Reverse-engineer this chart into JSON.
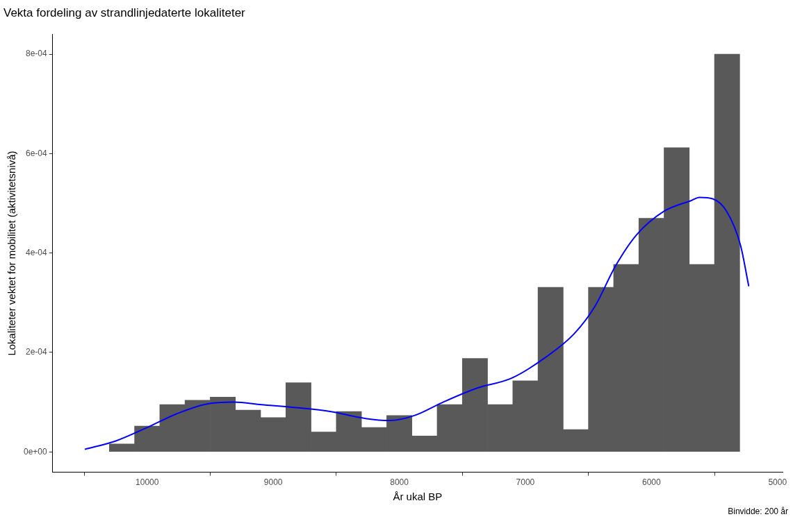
{
  "chart_data": {
    "type": "histogram",
    "title": "Vekta fordeling av strandlinjedaterte lokaliteter",
    "xlabel": "År ukal BP",
    "ylabel": "Lokaliteter vektet for mobilitet (aktivitetsnivå)",
    "xlim": [
      10750,
      4960
    ],
    "xticks": [
      10000,
      9000,
      8000,
      7000,
      6000,
      5000
    ],
    "ylim": [
      -4.1e-05,
      0.00084
    ],
    "yticks": [
      {
        "value": 0,
        "label": "0e+00"
      },
      {
        "value": 0.0002,
        "label": "2e-04"
      },
      {
        "value": 0.0004,
        "label": "4e-04"
      },
      {
        "value": 0.0006,
        "label": "6e-04"
      },
      {
        "value": 0.0008,
        "label": "8e-04"
      }
    ],
    "grid": false,
    "legend": false,
    "annotations": [
      "Binvidde: 200 år"
    ],
    "series": [
      {
        "color": "#595959",
        "bins": [
          5300,
          5500,
          5700,
          5900,
          6100,
          6300,
          6500,
          6700,
          6900,
          7100,
          7300,
          7500,
          7700,
          7900,
          8100,
          8300,
          8500,
          8700,
          8900,
          9100,
          9300,
          9500,
          9700,
          9900,
          10100,
          10300
        ],
        "values": [
          0.0008,
          0.000377,
          0.000612,
          0.00047,
          0.000377,
          0.000331,
          4.5e-05,
          0.000331,
          0.000143,
          9.5e-05,
          0.000188,
          9.5e-05,
          3.2e-05,
          7.3e-05,
          4.9e-05,
          8.1e-05,
          4e-05,
          0.000139,
          6.9e-05,
          8.4e-05,
          0.00011,
          0.000104,
          9.5e-05,
          5.2e-05,
          1.6e-05
        ]
      },
      {
        "type": "line",
        "color": "#0000ff",
        "x": [
          10495,
          10248,
          10000,
          9752,
          9532,
          9312,
          9092,
          8817,
          8542,
          8267,
          8074,
          7881,
          7661,
          7386,
          7111,
          6835,
          6615,
          6450,
          6285,
          6120,
          5900,
          5680,
          5620,
          5515,
          5404,
          5294,
          5228
        ],
        "values": [
          5e-06,
          2.2e-05,
          4.9e-05,
          7.8e-05,
          9.6e-05,
          0.0001,
          9.5e-05,
          8.9e-05,
          8.1e-05,
          6.7e-05,
          6.3e-05,
          7.3e-05,
          9.9e-05,
          0.000128,
          0.000148,
          0.000191,
          0.000237,
          0.000292,
          0.000374,
          0.000436,
          0.000484,
          0.000506,
          0.000512,
          0.000509,
          0.000484,
          0.000416,
          0.000333
        ]
      }
    ]
  }
}
